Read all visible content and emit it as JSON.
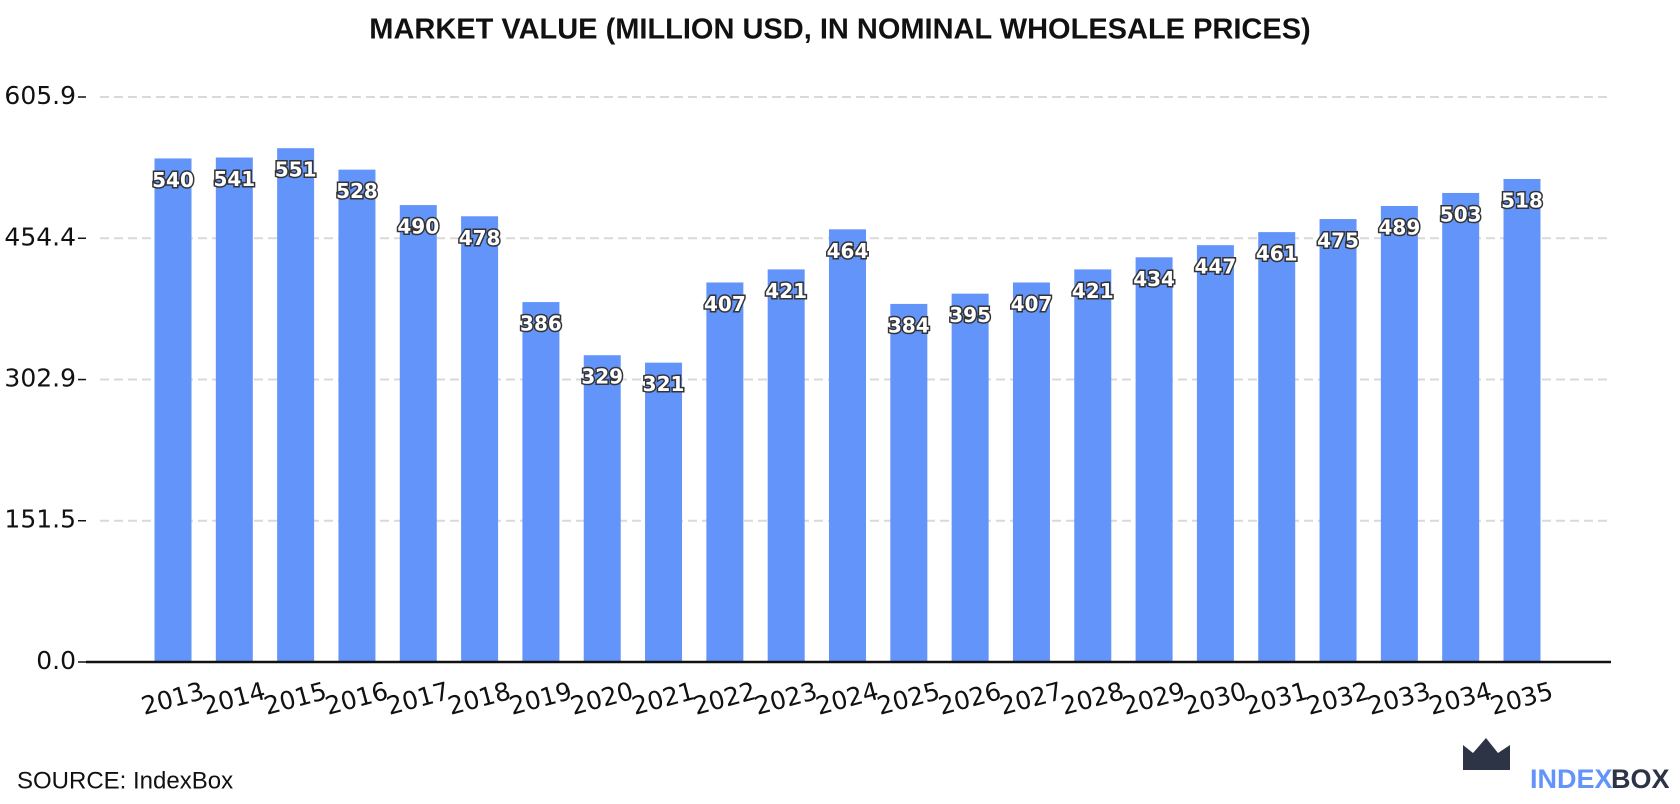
{
  "chart_data": {
    "type": "bar",
    "title": "MARKET VALUE (MILLION USD, IN NOMINAL WHOLESALE PRICES)",
    "categories": [
      "2013",
      "2014",
      "2015",
      "2016",
      "2017",
      "2018",
      "2019",
      "2020",
      "2021",
      "2022",
      "2023",
      "2024",
      "2025",
      "2026",
      "2027",
      "2028",
      "2029",
      "2030",
      "2031",
      "2032",
      "2033",
      "2034",
      "2035"
    ],
    "values": [
      540,
      541,
      551,
      528,
      490,
      478,
      386,
      329,
      321,
      407,
      421,
      464,
      384,
      395,
      407,
      421,
      434,
      447,
      461,
      475,
      489,
      503,
      518
    ],
    "color": "#6394fa",
    "ylim": [
      0,
      605.9
    ],
    "yticks": [
      {
        "value": 0,
        "label": "0.0"
      },
      151.5,
      302.9,
      454.4,
      605.9
    ],
    "grid": true,
    "source": "SOURCE: IndexBox",
    "logo": [
      "INDEX",
      "BOX"
    ]
  }
}
